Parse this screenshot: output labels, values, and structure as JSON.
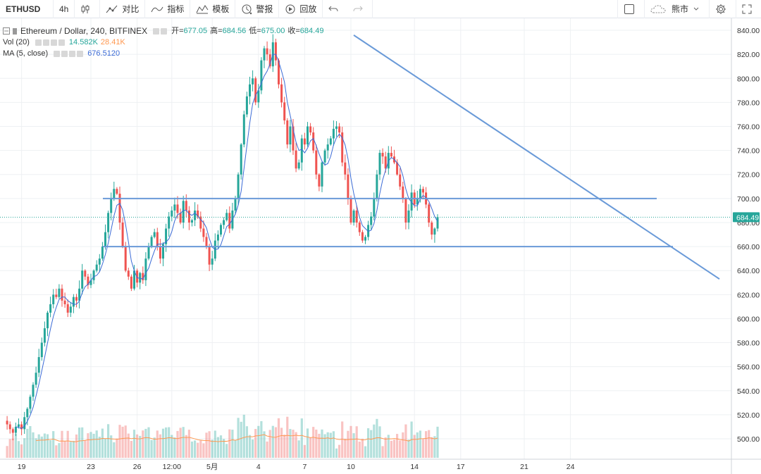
{
  "toolbar": {
    "symbol": "ETHUSD",
    "interval": "4h",
    "compare": "对比",
    "indicators": "指标",
    "templates": "模板",
    "alert": "警报",
    "replay": "回放",
    "theme_label": "熊市",
    "icons": [
      "candles-icon",
      "compare-icon",
      "indicators-icon",
      "templates-icon",
      "alert-icon",
      "replay-icon",
      "undo-icon",
      "redo-icon",
      "settings-icon",
      "fullscreen-icon"
    ]
  },
  "legend": {
    "title": "Ethereum / Dollar, 240, BITFINEX",
    "open_label": "开=",
    "open": "677.05",
    "high_label": "高=",
    "high": "684.56",
    "low_label": "低=",
    "low": "675.00",
    "close_label": "收=",
    "close": "684.49",
    "vol_label": "Vol (20)",
    "vol": "14.582K",
    "vol_ma": "28.41K",
    "ma_label": "MA (5, close)",
    "ma": "676.5120"
  },
  "colors": {
    "up": "#26a69a",
    "down": "#ef5350",
    "trendline": "#6a9ad8",
    "ma": "#3b6bd6",
    "vol_ma": "#ff9850"
  },
  "chart_data": {
    "type": "candlestick",
    "y_ticks": [
      500,
      520,
      540,
      560,
      580,
      600,
      620,
      640,
      660,
      680,
      700,
      720,
      740,
      760,
      780,
      800,
      820,
      840
    ],
    "y_tick_labels": [
      "500.00",
      "520.00",
      "540.00",
      "560.00",
      "580.00",
      "600.00",
      "620.00",
      "640.00",
      "660.00",
      "680.00",
      "700.00",
      "720.00",
      "740.00",
      "760.00",
      "780.00",
      "800.00",
      "820.00",
      "840.00"
    ],
    "ylim": [
      483,
      850
    ],
    "x_ticks": [
      {
        "i": 6,
        "label": "19"
      },
      {
        "i": 30,
        "label": "23"
      },
      {
        "i": 46,
        "label": "26"
      },
      {
        "i": 58,
        "label": "12:00"
      },
      {
        "i": 72,
        "label": "5月"
      },
      {
        "i": 88,
        "label": "4"
      },
      {
        "i": 104,
        "label": "7"
      },
      {
        "i": 120,
        "label": "10"
      },
      {
        "i": 142,
        "label": "14"
      },
      {
        "i": 158,
        "label": "17"
      },
      {
        "i": 180,
        "label": "21"
      },
      {
        "i": 196,
        "label": "24"
      }
    ],
    "last_price": "684.49",
    "last_price_value": 684.49,
    "closes": [
      515,
      512,
      508,
      505,
      510,
      512,
      508,
      518,
      525,
      535,
      545,
      555,
      568,
      580,
      592,
      605,
      612,
      620,
      618,
      625,
      615,
      612,
      605,
      610,
      618,
      615,
      625,
      640,
      635,
      628,
      632,
      640,
      645,
      650,
      660,
      672,
      688,
      700,
      708,
      704,
      680,
      660,
      640,
      635,
      625,
      640,
      630,
      638,
      632,
      650,
      660,
      668,
      672,
      660,
      650,
      662,
      675,
      685,
      690,
      695,
      688,
      680,
      698,
      690,
      680,
      682,
      690,
      685,
      675,
      668,
      660,
      645,
      650,
      665,
      670,
      678,
      682,
      688,
      675,
      690,
      700,
      720,
      745,
      770,
      785,
      795,
      800,
      780,
      790,
      815,
      825,
      820,
      810,
      830,
      815,
      795,
      780,
      765,
      745,
      760,
      740,
      725,
      730,
      750,
      745,
      760,
      755,
      740,
      720,
      710,
      730,
      740,
      745,
      750,
      758,
      760,
      755,
      730,
      720,
      700,
      680,
      690,
      680,
      672,
      665,
      668,
      678,
      685,
      700,
      720,
      738,
      735,
      725,
      738,
      735,
      730,
      720,
      710,
      700,
      680,
      690,
      705,
      695,
      700,
      708,
      705,
      695,
      680,
      670,
      675,
      684.49
    ],
    "series": [
      {
        "name": "",
        "type": "line",
        "ref": "support",
        "points": [
          [
            0,
            660
          ],
          [
            234,
            660
          ]
        ]
      },
      {
        "name": "",
        "type": "line",
        "ref": "resistance",
        "points": [
          [
            0,
            700
          ],
          [
            234,
            700
          ]
        ]
      },
      {
        "name": "",
        "type": "line",
        "ref": "descending",
        "points": [
          [
            0,
            836
          ],
          [
            234,
            633
          ]
        ]
      }
    ],
    "grid": true,
    "legend_position": "top-left"
  }
}
